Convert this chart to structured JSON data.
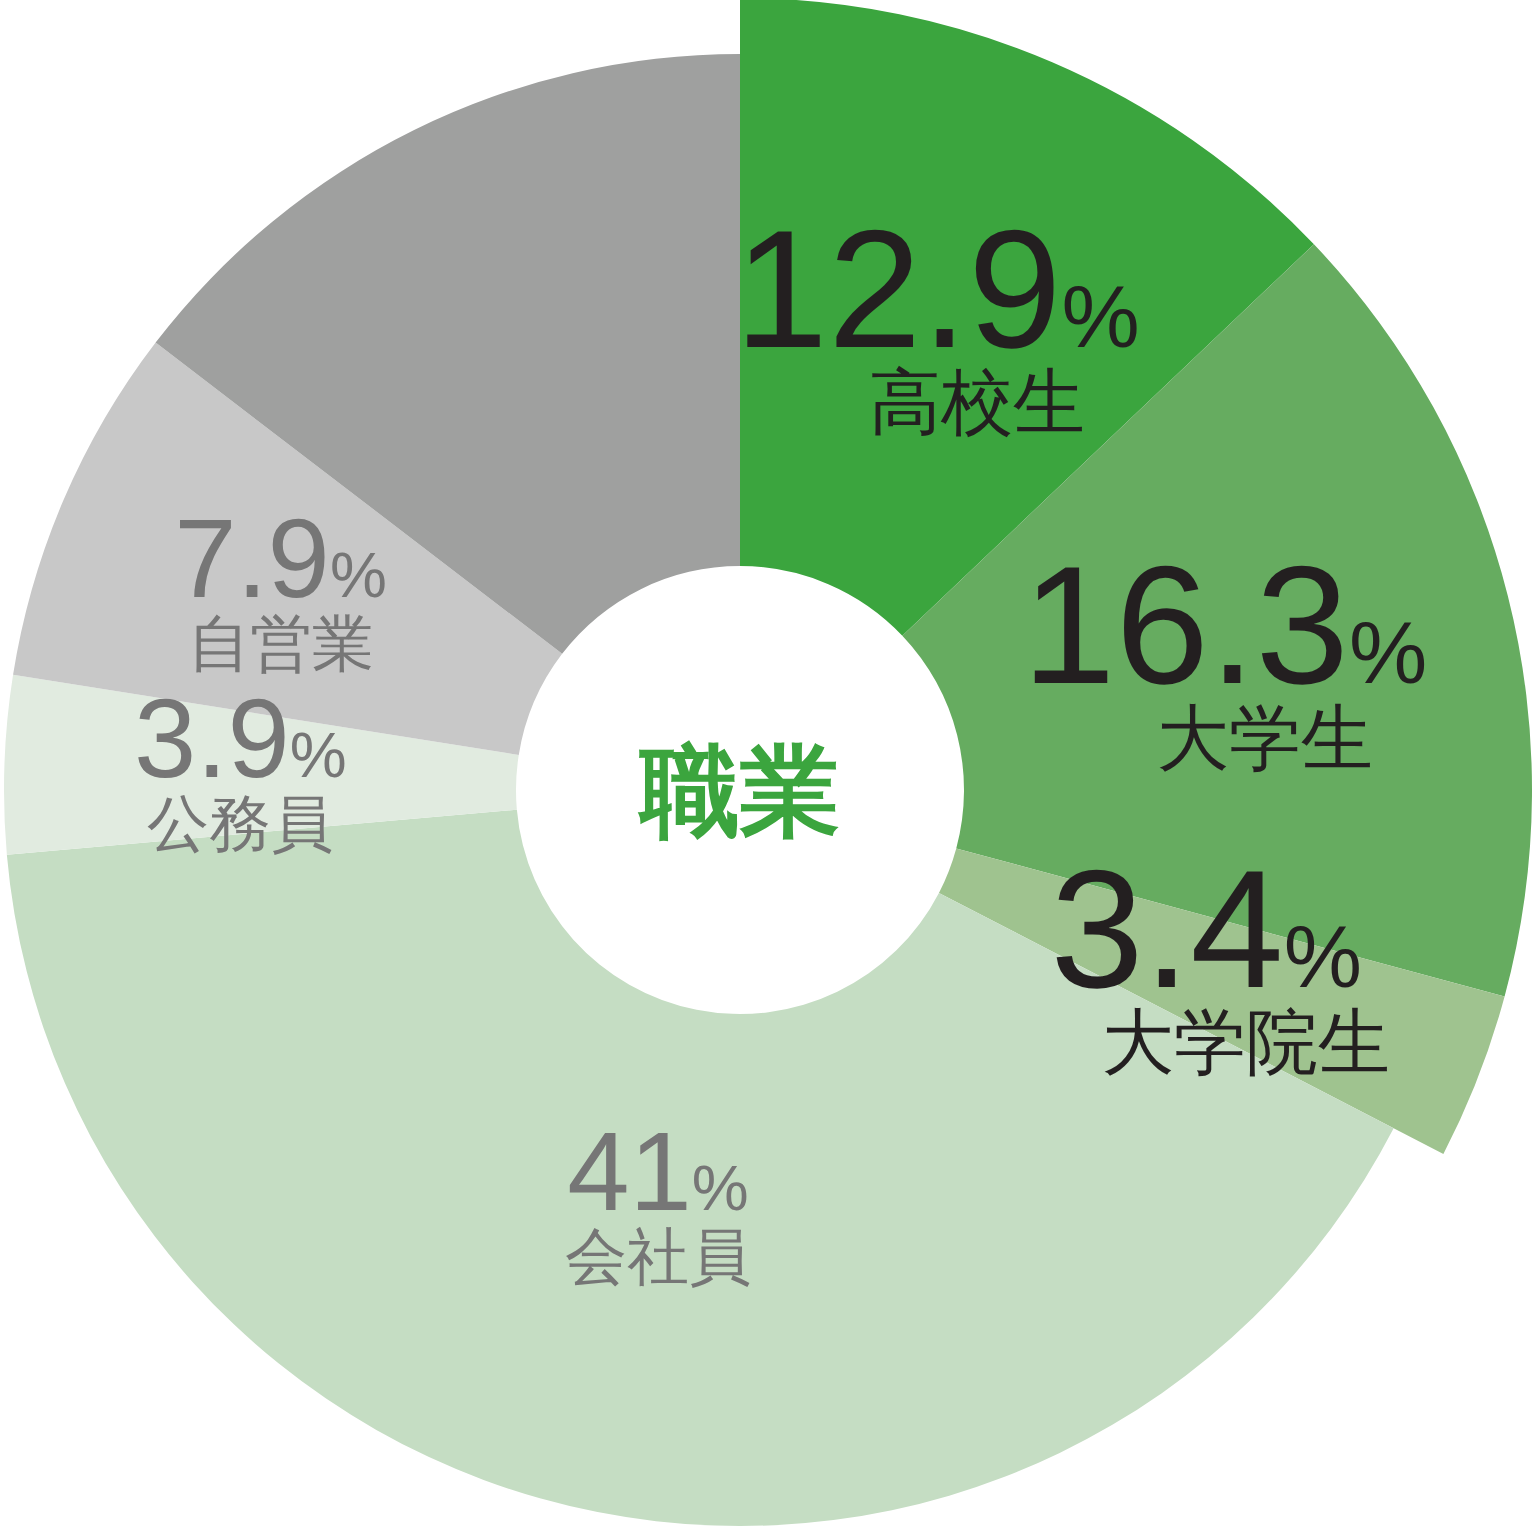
{
  "chart_data": {
    "type": "donut",
    "title": "職業",
    "categories": [
      "高校生",
      "大学生",
      "大学院生",
      "会社員",
      "公務員",
      "自営業",
      null
    ],
    "values": [
      12.9,
      16.3,
      3.4,
      41,
      3.9,
      7.9,
      14.6
    ],
    "colors": [
      "#3ba53e",
      "#66ac60",
      "#9fc38f",
      "#c5ddc3",
      "#e1ebe0",
      "#c8c8c8",
      "#9fa09f"
    ],
    "value_labels": [
      "12.9%",
      "16.3%",
      "3.4%",
      "41%",
      "3.9%",
      "7.9%",
      null
    ]
  }
}
